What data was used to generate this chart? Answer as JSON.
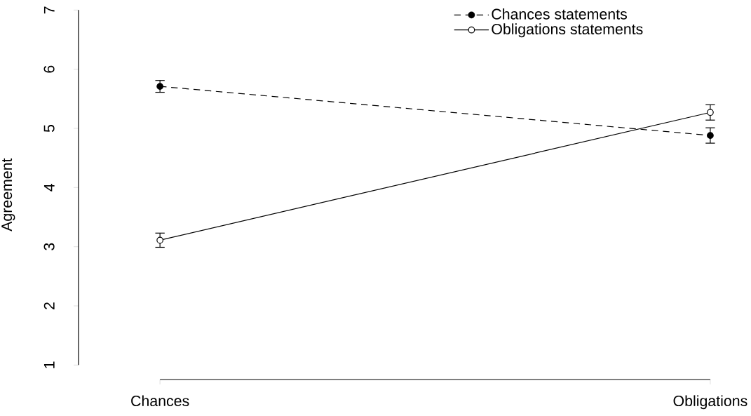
{
  "chart_data": {
    "type": "line",
    "ylabel": "Agreement",
    "categories": [
      "Chances",
      "Obligations"
    ],
    "series": [
      {
        "name": "Chances statements",
        "color": "#000000",
        "line_style": "dashed",
        "marker": "circle",
        "values": [
          5.71,
          4.88
        ],
        "errors": [
          0.1,
          0.13
        ]
      },
      {
        "name": "Obligations statements",
        "color": "#000000",
        "line_style": "solid",
        "marker": "circle",
        "values": [
          3.11,
          5.27
        ],
        "errors": [
          0.12,
          0.13
        ]
      }
    ],
    "ylim": [
      1,
      7
    ],
    "yticks": [
      1,
      2,
      3,
      4,
      5,
      6,
      7
    ],
    "grid": false,
    "legend": "top right"
  }
}
